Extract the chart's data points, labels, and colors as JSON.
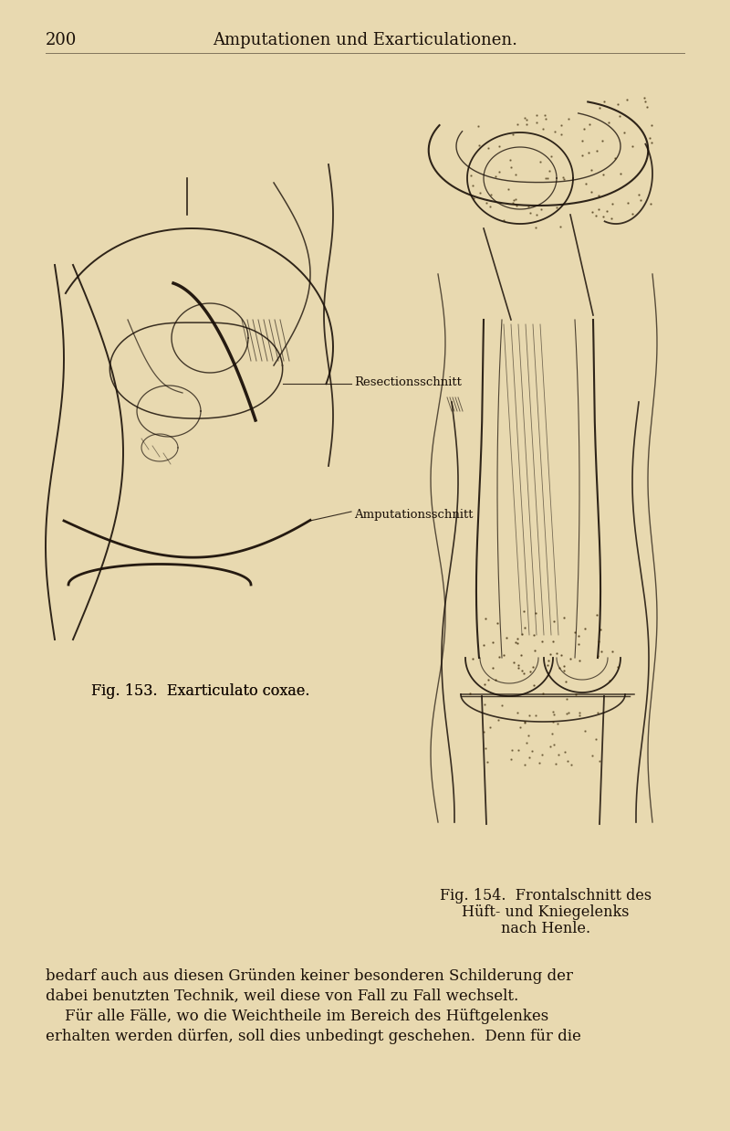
{
  "background_color": "#e8d9b0",
  "page_number": "200",
  "header_title": "Amputationen und Exarticulationen.",
  "header_fontsize": 13,
  "page_num_fontsize": 13,
  "fig153_caption": "Fig. 153.  Exarticulato coxae.",
  "fig154_caption_line1": "Fig. 154.  Frontalschnitt des",
  "fig154_caption_line2": "Hüft- und Kniegelenks",
  "fig154_caption_line3": "nach Henle.",
  "label_resection": "Resectionsschnitt",
  "label_amputation": "Amputationsschnitt",
  "body_text_line1": "bedarf auch aus diesen Gründen keiner besonderen Schilderung der",
  "body_text_line2": "dabei benutzten Technik, weil diese von Fall zu Fall wechselt.",
  "body_text_line3": "    Für alle Fälle, wo die Weichtheile im Bereich des Hüftgelenkes",
  "body_text_line4": "erhalten werden dürfen, soll dies unbedingt geschehen.  Denn für die",
  "text_color": "#1a1008",
  "body_fontsize": 12,
  "caption_fontsize": 11.5
}
